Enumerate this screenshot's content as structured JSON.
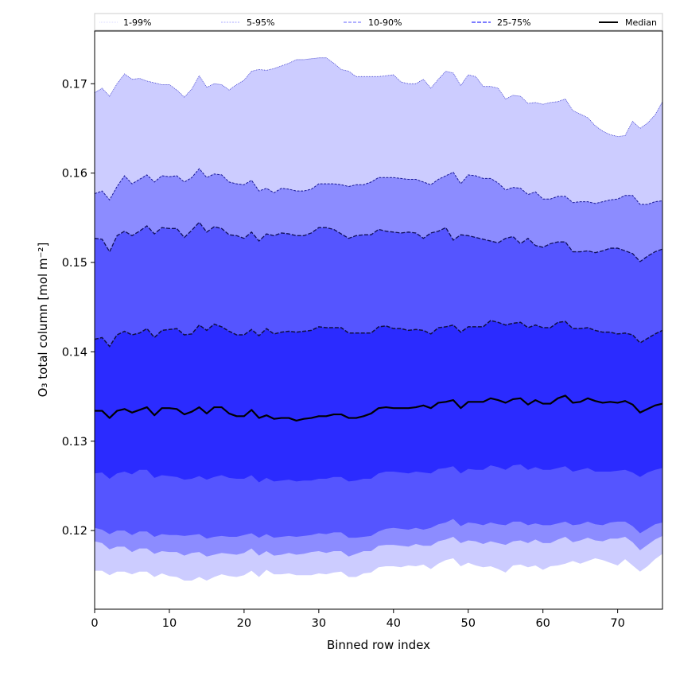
{
  "chart_data": {
    "type": "area",
    "title": "",
    "xlabel": "Binned row index",
    "ylabel": "O₃ total column [mol m⁻²]",
    "xlim": [
      0,
      76
    ],
    "ylim": [
      0.1112,
      0.1759
    ],
    "xticks": [
      0,
      10,
      20,
      30,
      40,
      50,
      60,
      70
    ],
    "xtick_labels": [
      "0",
      "10",
      "20",
      "30",
      "40",
      "50",
      "60",
      "70"
    ],
    "yticks": [
      0.12,
      0.13,
      0.14,
      0.15,
      0.16,
      0.17
    ],
    "ytick_labels": [
      "0.12",
      "0.13",
      "0.14",
      "0.15",
      "0.16",
      "0.17"
    ],
    "grid": false,
    "legend": {
      "placement": "top",
      "entries": [
        {
          "label": "1-99%",
          "color": "#ccccff",
          "style": "dotted"
        },
        {
          "label": "5-95%",
          "color": "#8c8cff",
          "style": "dashed"
        },
        {
          "label": "10-90%",
          "color": "#5555ff",
          "style": "dashed"
        },
        {
          "label": "25-75%",
          "color": "#2b2bff",
          "style": "dashed"
        },
        {
          "label": "Median",
          "color": "#000000",
          "style": "solid"
        }
      ]
    },
    "x": [
      0,
      1,
      2,
      3,
      4,
      5,
      6,
      7,
      8,
      9,
      10,
      11,
      12,
      13,
      14,
      15,
      16,
      17,
      18,
      19,
      20,
      21,
      22,
      23,
      24,
      25,
      26,
      27,
      28,
      29,
      30,
      31,
      32,
      33,
      34,
      35,
      36,
      37,
      38,
      39,
      40,
      41,
      42,
      43,
      44,
      45,
      46,
      47,
      48,
      49,
      50,
      51,
      52,
      53,
      54,
      55,
      56,
      57,
      58,
      59,
      60,
      61,
      62,
      63,
      64,
      65,
      66,
      67,
      68,
      69,
      70,
      71,
      72,
      73,
      74,
      75,
      76
    ],
    "series": [
      {
        "name": "1-99% upper",
        "values": [
          0.169,
          0.1695,
          0.1686,
          0.17,
          0.1711,
          0.1705,
          0.1706,
          0.1703,
          0.1701,
          0.1699,
          0.1699,
          0.1693,
          0.1685,
          0.1694,
          0.1709,
          0.1696,
          0.17,
          0.1699,
          0.1693,
          0.1699,
          0.1704,
          0.1714,
          0.1716,
          0.1715,
          0.1717,
          0.172,
          0.1723,
          0.1727,
          0.1727,
          0.1728,
          0.1729,
          0.1729,
          0.1723,
          0.1716,
          0.1714,
          0.1708,
          0.1708,
          0.1708,
          0.1708,
          0.1709,
          0.171,
          0.1702,
          0.17,
          0.17,
          0.1705,
          0.1695,
          0.1705,
          0.1714,
          0.1712,
          0.1698,
          0.171,
          0.1708,
          0.1697,
          0.1697,
          0.1695,
          0.1683,
          0.1687,
          0.1686,
          0.1678,
          0.1679,
          0.1677,
          0.1679,
          0.168,
          0.1683,
          0.167,
          0.1666,
          0.1662,
          0.1653,
          0.1647,
          0.1643,
          0.1641,
          0.1642,
          0.1658,
          0.165,
          0.1656,
          0.1665,
          0.168
        ]
      },
      {
        "name": "5-95% upper",
        "values": [
          0.1577,
          0.158,
          0.157,
          0.1585,
          0.1597,
          0.1588,
          0.1593,
          0.1598,
          0.159,
          0.1597,
          0.1596,
          0.1597,
          0.159,
          0.1595,
          0.1605,
          0.1595,
          0.1599,
          0.1598,
          0.159,
          0.1588,
          0.1587,
          0.1592,
          0.158,
          0.1583,
          0.1578,
          0.1583,
          0.1582,
          0.158,
          0.158,
          0.1582,
          0.1588,
          0.1588,
          0.1588,
          0.1587,
          0.1585,
          0.1587,
          0.1587,
          0.159,
          0.1595,
          0.1595,
          0.1595,
          0.1594,
          0.1593,
          0.1593,
          0.159,
          0.1587,
          0.1593,
          0.1597,
          0.1601,
          0.1588,
          0.1598,
          0.1597,
          0.1594,
          0.1594,
          0.1589,
          0.1581,
          0.1584,
          0.1583,
          0.1576,
          0.1579,
          0.1571,
          0.1571,
          0.1574,
          0.1574,
          0.1567,
          0.1568,
          0.1568,
          0.1566,
          0.1568,
          0.157,
          0.1571,
          0.1575,
          0.1575,
          0.1565,
          0.1565,
          0.1568,
          0.1569
        ]
      },
      {
        "name": "10-90% upper",
        "values": [
          0.1527,
          0.1526,
          0.1512,
          0.153,
          0.1535,
          0.153,
          0.1535,
          0.1541,
          0.1532,
          0.1539,
          0.1538,
          0.1538,
          0.1528,
          0.1536,
          0.1545,
          0.1534,
          0.154,
          0.1538,
          0.1531,
          0.153,
          0.1527,
          0.1534,
          0.1524,
          0.1532,
          0.153,
          0.1533,
          0.1532,
          0.153,
          0.153,
          0.1533,
          0.1539,
          0.1539,
          0.1537,
          0.1532,
          0.1527,
          0.153,
          0.1531,
          0.1531,
          0.1537,
          0.1535,
          0.1534,
          0.1533,
          0.1534,
          0.1533,
          0.1527,
          0.1533,
          0.1535,
          0.1539,
          0.1525,
          0.1531,
          0.153,
          0.1528,
          0.1526,
          0.1524,
          0.1522,
          0.1527,
          0.1529,
          0.1521,
          0.1527,
          0.1519,
          0.1517,
          0.1521,
          0.1523,
          0.1523,
          0.1512,
          0.1512,
          0.1513,
          0.1511,
          0.1513,
          0.1516,
          0.1516,
          0.1513,
          0.151,
          0.1501,
          0.1507,
          0.1512,
          0.1515
        ]
      },
      {
        "name": "25-75% upper",
        "values": [
          0.1414,
          0.1416,
          0.1406,
          0.1419,
          0.1423,
          0.1419,
          0.1421,
          0.1426,
          0.1416,
          0.1424,
          0.1425,
          0.1426,
          0.1419,
          0.142,
          0.143,
          0.1424,
          0.1431,
          0.1428,
          0.1423,
          0.1419,
          0.1419,
          0.1425,
          0.1418,
          0.1426,
          0.142,
          0.1422,
          0.1423,
          0.1422,
          0.1423,
          0.1424,
          0.1428,
          0.1427,
          0.1427,
          0.1427,
          0.1421,
          0.1421,
          0.1421,
          0.1421,
          0.1428,
          0.1429,
          0.1426,
          0.1426,
          0.1424,
          0.1425,
          0.1424,
          0.142,
          0.1427,
          0.1428,
          0.143,
          0.1422,
          0.1428,
          0.1428,
          0.1428,
          0.1435,
          0.1433,
          0.143,
          0.1432,
          0.1433,
          0.1427,
          0.143,
          0.1427,
          0.1427,
          0.1433,
          0.1434,
          0.1426,
          0.1426,
          0.1427,
          0.1424,
          0.1422,
          0.1422,
          0.142,
          0.1421,
          0.1419,
          0.141,
          0.1415,
          0.142,
          0.1424
        ]
      },
      {
        "name": "Median",
        "values": [
          0.1334,
          0.1334,
          0.1326,
          0.1334,
          0.1336,
          0.1332,
          0.1335,
          0.1338,
          0.1329,
          0.1337,
          0.1337,
          0.1336,
          0.133,
          0.1333,
          0.1338,
          0.1331,
          0.1338,
          0.1338,
          0.1331,
          0.1328,
          0.1328,
          0.1335,
          0.1326,
          0.1329,
          0.1325,
          0.1326,
          0.1326,
          0.1323,
          0.1325,
          0.1326,
          0.1328,
          0.1328,
          0.133,
          0.133,
          0.1326,
          0.1326,
          0.1328,
          0.1331,
          0.1337,
          0.1338,
          0.1337,
          0.1337,
          0.1337,
          0.1338,
          0.134,
          0.1337,
          0.1343,
          0.1344,
          0.1346,
          0.1337,
          0.1344,
          0.1344,
          0.1344,
          0.1348,
          0.1346,
          0.1343,
          0.1347,
          0.1348,
          0.1341,
          0.1346,
          0.1342,
          0.1342,
          0.1348,
          0.1351,
          0.1343,
          0.1344,
          0.1348,
          0.1345,
          0.1343,
          0.1344,
          0.1343,
          0.1345,
          0.1341,
          0.1332,
          0.1336,
          0.134,
          0.1342
        ]
      },
      {
        "name": "25-75% lower",
        "values": [
          0.1264,
          0.1265,
          0.1258,
          0.1264,
          0.1266,
          0.1263,
          0.1268,
          0.1268,
          0.1259,
          0.1262,
          0.1261,
          0.126,
          0.1257,
          0.1258,
          0.1261,
          0.1257,
          0.126,
          0.1262,
          0.1259,
          0.1258,
          0.1258,
          0.1262,
          0.1254,
          0.1259,
          0.1255,
          0.1256,
          0.1257,
          0.1255,
          0.1256,
          0.1256,
          0.1258,
          0.1258,
          0.126,
          0.126,
          0.1255,
          0.1256,
          0.1258,
          0.1258,
          0.1264,
          0.1266,
          0.1266,
          0.1265,
          0.1264,
          0.1266,
          0.1265,
          0.1264,
          0.1269,
          0.127,
          0.1272,
          0.1264,
          0.1269,
          0.1268,
          0.1268,
          0.1273,
          0.1271,
          0.1268,
          0.1273,
          0.1274,
          0.1268,
          0.1271,
          0.1268,
          0.1268,
          0.127,
          0.1272,
          0.1266,
          0.1268,
          0.127,
          0.1266,
          0.1266,
          0.1266,
          0.1267,
          0.1268,
          0.1265,
          0.126,
          0.1265,
          0.1268,
          0.127
        ]
      },
      {
        "name": "10-90% lower",
        "values": [
          0.1203,
          0.1201,
          0.1196,
          0.12,
          0.12,
          0.1195,
          0.1199,
          0.1199,
          0.1193,
          0.1196,
          0.1195,
          0.1195,
          0.1194,
          0.1195,
          0.1196,
          0.1191,
          0.1193,
          0.1194,
          0.1193,
          0.1193,
          0.1195,
          0.1197,
          0.1192,
          0.1196,
          0.1192,
          0.1193,
          0.1194,
          0.1193,
          0.1194,
          0.1195,
          0.1197,
          0.1196,
          0.1198,
          0.1198,
          0.1192,
          0.1192,
          0.1193,
          0.1194,
          0.1199,
          0.1202,
          0.1203,
          0.1202,
          0.1201,
          0.1203,
          0.1201,
          0.1203,
          0.1207,
          0.1209,
          0.1213,
          0.1205,
          0.1209,
          0.1208,
          0.1206,
          0.1209,
          0.1207,
          0.1206,
          0.121,
          0.121,
          0.1206,
          0.1208,
          0.1206,
          0.1206,
          0.1208,
          0.121,
          0.1206,
          0.1207,
          0.121,
          0.1207,
          0.1206,
          0.1209,
          0.121,
          0.121,
          0.1205,
          0.1197,
          0.1202,
          0.1207,
          0.1209
        ]
      },
      {
        "name": "5-95% lower",
        "values": [
          0.1188,
          0.1186,
          0.1179,
          0.1182,
          0.1182,
          0.1176,
          0.118,
          0.118,
          0.1174,
          0.1177,
          0.1176,
          0.1176,
          0.1172,
          0.1175,
          0.1176,
          0.1171,
          0.1173,
          0.1175,
          0.1174,
          0.1173,
          0.1175,
          0.118,
          0.1172,
          0.1177,
          0.1172,
          0.1173,
          0.1175,
          0.1173,
          0.1174,
          0.1176,
          0.1177,
          0.1175,
          0.1177,
          0.1177,
          0.1171,
          0.1174,
          0.1177,
          0.1177,
          0.1183,
          0.1184,
          0.1184,
          0.1183,
          0.1182,
          0.1185,
          0.1183,
          0.1183,
          0.1188,
          0.119,
          0.1193,
          0.1186,
          0.1189,
          0.1188,
          0.1185,
          0.1188,
          0.1186,
          0.1184,
          0.1188,
          0.1189,
          0.1186,
          0.119,
          0.1186,
          0.1186,
          0.119,
          0.1193,
          0.1187,
          0.1189,
          0.1192,
          0.1189,
          0.1188,
          0.1191,
          0.1191,
          0.1193,
          0.1187,
          0.1178,
          0.1184,
          0.119,
          0.1194
        ]
      },
      {
        "name": "1-99% lower",
        "values": [
          0.1155,
          0.1155,
          0.115,
          0.1154,
          0.1154,
          0.1151,
          0.1154,
          0.1154,
          0.1148,
          0.1152,
          0.1149,
          0.1148,
          0.1144,
          0.1144,
          0.1148,
          0.1144,
          0.1148,
          0.1151,
          0.1149,
          0.1148,
          0.115,
          0.1155,
          0.1148,
          0.1156,
          0.1151,
          0.1151,
          0.1152,
          0.115,
          0.115,
          0.115,
          0.1152,
          0.1151,
          0.1153,
          0.1154,
          0.1148,
          0.1148,
          0.1152,
          0.1153,
          0.1159,
          0.116,
          0.116,
          0.1159,
          0.1161,
          0.116,
          0.1162,
          0.1157,
          0.1163,
          0.1167,
          0.1169,
          0.116,
          0.1164,
          0.1161,
          0.1159,
          0.116,
          0.1157,
          0.1153,
          0.1161,
          0.1162,
          0.1159,
          0.1161,
          0.1156,
          0.116,
          0.1161,
          0.1163,
          0.1166,
          0.1163,
          0.1166,
          0.1169,
          0.1167,
          0.1164,
          0.1161,
          0.1168,
          0.1161,
          0.1154,
          0.116,
          0.1168,
          0.1174
        ]
      }
    ]
  }
}
